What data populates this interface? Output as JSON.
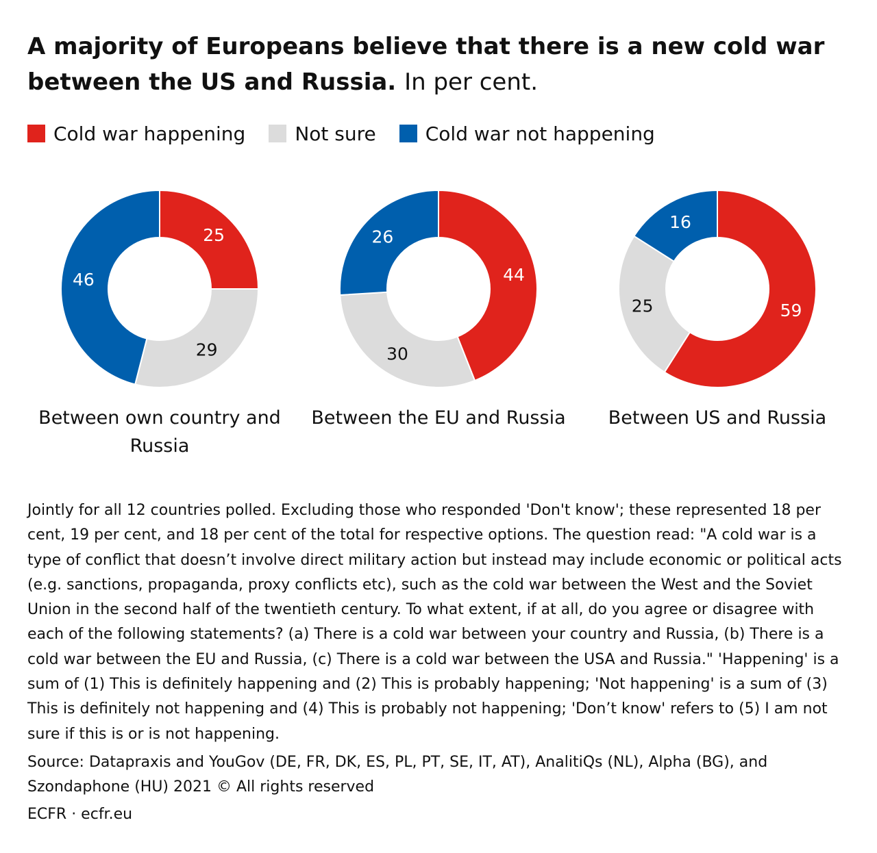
{
  "title": {
    "main": "A majority of Europeans believe that there is a new cold war between the US and Russia.",
    "unit": "In per cent."
  },
  "colors": {
    "happening": "#e0231c",
    "not_sure": "#dcdcdc",
    "not_happening": "#005fad"
  },
  "chart_data": {
    "type": "pie",
    "variant": "donut",
    "legend_placement": "top-left",
    "categories": [
      "Cold war happening",
      "Not sure",
      "Cold war not happening"
    ],
    "charts": [
      {
        "label": "Between own country and Russia",
        "values": [
          25,
          29,
          46
        ]
      },
      {
        "label": "Between the EU and Russia",
        "values": [
          44,
          30,
          26
        ]
      },
      {
        "label": "Between US and Russia",
        "values": [
          59,
          25,
          16
        ]
      }
    ]
  },
  "note": "Jointly for all 12 countries polled. Excluding those who responded 'Don't know'; these represented 18 per cent, 19 per cent, and 18 per cent of the total for respective options. The question read: \"A cold war is a type of conflict that doesn’t involve direct military action but instead may include economic or political acts (e.g. sanctions, propaganda, proxy conflicts etc), such as the cold war between the West and the Soviet Union in the second half of the twentieth century. To what extent, if at all, do you agree or disagree with each of the following statements? (a) There is a cold war between your country and Russia, (b) There is a cold war between the EU and Russia, (c) There is a cold war between the USA and Russia.\" 'Happening' is a sum of (1) This is definitely happening and (2) This is probably happening; 'Not happening' is a sum of (3) This is definitely not happening and (4) This is probably not happening; 'Don’t know' refers to (5) I am not sure if this is or is not happening.",
  "source": "Source: Datapraxis and YouGov (DE, FR, DK, ES, PL, PT, SE, IT, AT), AnalitiQs (NL), Alpha (BG), and Szondaphone (HU) 2021 © All rights reserved",
  "brand": "ECFR · ecfr.eu"
}
